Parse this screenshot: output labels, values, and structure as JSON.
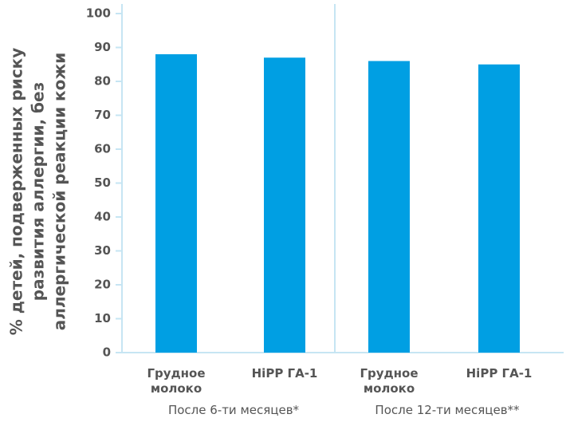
{
  "chart_data": {
    "type": "bar",
    "ylabel": [
      "% детей, подверженных риску",
      "развития аллергии, без",
      "аллергической реакции кожи"
    ],
    "categories": [
      "Грудное молоко",
      "HiPP ГА-1",
      "Грудное молоко",
      "HiPP ГА-1"
    ],
    "values": [
      88,
      87,
      86,
      85
    ],
    "groups": [
      "После 6-ти месяцев*",
      "После 12-ти месяцев**"
    ],
    "color": "#009fe3",
    "ylim": [
      0,
      100
    ],
    "yticks": [
      0,
      10,
      20,
      30,
      40,
      50,
      60,
      70,
      80,
      90,
      100
    ]
  }
}
